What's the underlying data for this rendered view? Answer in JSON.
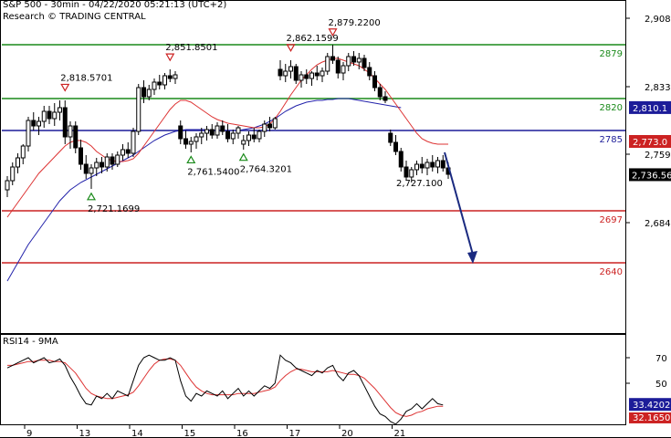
{
  "header": {
    "title": "S&P 500 - 30min - 04/22/2020 05:21:13 (UTC+2)",
    "source": "Research © TRADING CENTRAL"
  },
  "rsi_panel": {
    "label": "RSI14 - 9MA",
    "ticks": [
      "70",
      "50"
    ],
    "last_rsi": "33.4202",
    "last_ma": "32.1650"
  },
  "colors": {
    "green": "#1a8a1a",
    "blue": "#1c1c99",
    "red": "#cc2222",
    "candle_up": "#ffffff",
    "candle_down": "#000000",
    "ma_red": "#dd3333",
    "ma_blue": "#2222aa",
    "arrow": "#1a2a80"
  },
  "chart_data": {
    "type": "candlestick",
    "y_ticks": [
      "2,908",
      "2,833",
      "2,759",
      "2,684"
    ],
    "x_ticks": [
      "9",
      "13",
      "14",
      "15",
      "16",
      "17",
      "20",
      "21"
    ],
    "last_price": "2,736.56",
    "price_tags": [
      {
        "label": "2,810.1",
        "value": 2810.1,
        "color": "blue"
      },
      {
        "label": "2,773.0",
        "value": 2773.0,
        "color": "red"
      }
    ],
    "levels": [
      {
        "label": "2879",
        "value": 2879,
        "color": "green"
      },
      {
        "label": "2820",
        "value": 2820,
        "color": "green"
      },
      {
        "label": "2785",
        "value": 2785,
        "color": "blue"
      },
      {
        "label": "2697",
        "value": 2697,
        "color": "red"
      },
      {
        "label": "2640",
        "value": 2640,
        "color": "red"
      }
    ],
    "annotations": [
      {
        "label": "2,818.5701",
        "kind": "high",
        "value": 2818.57,
        "bar": 11
      },
      {
        "label": "2,721.1699",
        "kind": "low",
        "value": 2721.17,
        "bar": 16
      },
      {
        "label": "2,851.8501",
        "kind": "high",
        "value": 2851.85,
        "bar": 31
      },
      {
        "label": "2,761.5400",
        "kind": "low",
        "value": 2761.54,
        "bar": 35
      },
      {
        "label": "2,764.3201",
        "kind": "low",
        "value": 2764.32,
        "bar": 45
      },
      {
        "label": "2,862.1599",
        "kind": "high",
        "value": 2862.16,
        "bar": 54
      },
      {
        "label": "2,879.2200",
        "kind": "high",
        "value": 2879.22,
        "bar": 62
      },
      {
        "label": "2,727.100",
        "kind": "note",
        "value": 2727.1,
        "bar": 80
      }
    ],
    "forecast": {
      "from": 2758,
      "to": 2640
    },
    "ohlc": [
      [
        2720,
        2735,
        2712,
        2730
      ],
      [
        2730,
        2750,
        2725,
        2745
      ],
      [
        2745,
        2760,
        2738,
        2755
      ],
      [
        2755,
        2770,
        2748,
        2768
      ],
      [
        2768,
        2800,
        2762,
        2796
      ],
      [
        2796,
        2805,
        2785,
        2790
      ],
      [
        2790,
        2800,
        2780,
        2795
      ],
      [
        2795,
        2812,
        2788,
        2806
      ],
      [
        2806,
        2812,
        2792,
        2798
      ],
      [
        2798,
        2815,
        2790,
        2805
      ],
      [
        2805,
        2818,
        2796,
        2810
      ],
      [
        2810,
        2818,
        2770,
        2778
      ],
      [
        2778,
        2795,
        2765,
        2790
      ],
      [
        2790,
        2795,
        2760,
        2766
      ],
      [
        2766,
        2775,
        2742,
        2748
      ],
      [
        2748,
        2758,
        2732,
        2738
      ],
      [
        2738,
        2748,
        2721,
        2744
      ],
      [
        2744,
        2755,
        2735,
        2750
      ],
      [
        2750,
        2756,
        2738,
        2745
      ],
      [
        2745,
        2760,
        2740,
        2756
      ],
      [
        2756,
        2760,
        2742,
        2748
      ],
      [
        2748,
        2762,
        2745,
        2758
      ],
      [
        2758,
        2770,
        2752,
        2764
      ],
      [
        2764,
        2772,
        2755,
        2760
      ],
      [
        2760,
        2788,
        2756,
        2784
      ],
      [
        2784,
        2836,
        2780,
        2832
      ],
      [
        2832,
        2840,
        2815,
        2822
      ],
      [
        2822,
        2835,
        2818,
        2830
      ],
      [
        2830,
        2842,
        2824,
        2838
      ],
      [
        2838,
        2846,
        2830,
        2835
      ],
      [
        2835,
        2848,
        2830,
        2845
      ],
      [
        2845,
        2852,
        2838,
        2842
      ],
      [
        2842,
        2850,
        2836,
        2846
      ],
      [
        2790,
        2796,
        2770,
        2776
      ],
      [
        2776,
        2785,
        2765,
        2770
      ],
      [
        2770,
        2778,
        2761,
        2773
      ],
      [
        2773,
        2782,
        2765,
        2778
      ],
      [
        2778,
        2788,
        2770,
        2782
      ],
      [
        2782,
        2790,
        2774,
        2786
      ],
      [
        2786,
        2792,
        2776,
        2780
      ],
      [
        2780,
        2794,
        2776,
        2790
      ],
      [
        2790,
        2796,
        2780,
        2784
      ],
      [
        2784,
        2792,
        2772,
        2776
      ],
      [
        2776,
        2786,
        2770,
        2782
      ],
      [
        2782,
        2790,
        2776,
        2788
      ],
      [
        2770,
        2780,
        2764,
        2774
      ],
      [
        2774,
        2784,
        2768,
        2780
      ],
      [
        2780,
        2788,
        2772,
        2776
      ],
      [
        2776,
        2786,
        2772,
        2784
      ],
      [
        2784,
        2796,
        2778,
        2792
      ],
      [
        2792,
        2800,
        2784,
        2788
      ],
      [
        2788,
        2800,
        2786,
        2798
      ],
      [
        2852,
        2862,
        2840,
        2845
      ],
      [
        2845,
        2858,
        2838,
        2850
      ],
      [
        2850,
        2862,
        2842,
        2855
      ],
      [
        2855,
        2858,
        2836,
        2840
      ],
      [
        2840,
        2850,
        2832,
        2846
      ],
      [
        2846,
        2852,
        2836,
        2842
      ],
      [
        2842,
        2850,
        2834,
        2848
      ],
      [
        2848,
        2856,
        2840,
        2845
      ],
      [
        2845,
        2854,
        2838,
        2850
      ],
      [
        2850,
        2870,
        2846,
        2866
      ],
      [
        2866,
        2879,
        2858,
        2862
      ],
      [
        2862,
        2866,
        2842,
        2848
      ],
      [
        2848,
        2860,
        2840,
        2856
      ],
      [
        2856,
        2870,
        2850,
        2866
      ],
      [
        2866,
        2872,
        2856,
        2860
      ],
      [
        2860,
        2870,
        2852,
        2864
      ],
      [
        2864,
        2868,
        2850,
        2854
      ],
      [
        2854,
        2860,
        2840,
        2845
      ],
      [
        2845,
        2850,
        2828,
        2832
      ],
      [
        2832,
        2836,
        2818,
        2822
      ],
      [
        2822,
        2828,
        2815,
        2818
      ],
      [
        2782,
        2786,
        2768,
        2772
      ],
      [
        2772,
        2780,
        2758,
        2762
      ],
      [
        2762,
        2766,
        2740,
        2745
      ],
      [
        2745,
        2752,
        2730,
        2734
      ],
      [
        2734,
        2745,
        2728,
        2742
      ],
      [
        2742,
        2752,
        2736,
        2748
      ],
      [
        2748,
        2756,
        2738,
        2744
      ],
      [
        2744,
        2754,
        2736,
        2750
      ],
      [
        2750,
        2758,
        2740,
        2745
      ],
      [
        2745,
        2756,
        2738,
        2752
      ],
      [
        2752,
        2758,
        2740,
        2744
      ],
      [
        2744,
        2750,
        2732,
        2737
      ]
    ],
    "ma_red": [
      2690,
      2698,
      2706,
      2714,
      2722,
      2730,
      2738,
      2744,
      2750,
      2756,
      2762,
      2768,
      2772,
      2774,
      2774,
      2772,
      2768,
      2762,
      2758,
      2754,
      2752,
      2751,
      2751,
      2752,
      2754,
      2760,
      2768,
      2776,
      2784,
      2792,
      2800,
      2808,
      2814,
      2818,
      2818,
      2816,
      2812,
      2808,
      2804,
      2800,
      2797,
      2795,
      2793,
      2792,
      2791,
      2790,
      2789,
      2788,
      2788,
      2789,
      2792,
      2798,
      2806,
      2815,
      2824,
      2832,
      2840,
      2846,
      2852,
      2857,
      2860,
      2862,
      2864,
      2864,
      2862,
      2860,
      2858,
      2856,
      2852,
      2848,
      2842,
      2836,
      2830,
      2822,
      2814,
      2806,
      2798,
      2790,
      2782,
      2776,
      2773,
      2771,
      2770,
      2770,
      2770
    ],
    "ma_blue": [
      2620,
      2630,
      2640,
      2650,
      2660,
      2668,
      2676,
      2684,
      2692,
      2700,
      2708,
      2714,
      2720,
      2724,
      2728,
      2731,
      2734,
      2737,
      2740,
      2743,
      2746,
      2749,
      2752,
      2755,
      2758,
      2762,
      2766,
      2770,
      2774,
      2777,
      2780,
      2782,
      2784,
      2785,
      2786,
      2786,
      2786,
      2786,
      2786,
      2785,
      2785,
      2785,
      2785,
      2785,
      2785,
      2786,
      2787,
      2788,
      2790,
      2792,
      2795,
      2798,
      2802,
      2806,
      2809,
      2812,
      2814,
      2816,
      2817,
      2818,
      2818,
      2819,
      2819,
      2820,
      2820,
      2820,
      2819,
      2818,
      2817,
      2816,
      2815,
      2814,
      2813,
      2812,
      2811,
      2810
    ],
    "rsi": [
      62,
      64,
      66,
      68,
      70,
      66,
      68,
      70,
      66,
      67,
      69,
      64,
      55,
      48,
      40,
      34,
      33,
      40,
      38,
      42,
      38,
      44,
      42,
      40,
      52,
      64,
      70,
      72,
      70,
      68,
      68,
      70,
      68,
      52,
      40,
      36,
      42,
      40,
      44,
      42,
      40,
      44,
      38,
      42,
      46,
      40,
      44,
      40,
      44,
      48,
      46,
      50,
      72,
      68,
      66,
      62,
      60,
      58,
      56,
      60,
      58,
      62,
      64,
      56,
      52,
      58,
      60,
      56,
      48,
      40,
      32,
      26,
      24,
      20,
      18,
      22,
      28,
      30,
      34,
      30,
      34,
      38,
      34,
      33
    ],
    "rsi_ma": [
      64,
      64,
      65,
      66,
      67,
      67,
      68,
      68,
      68,
      67,
      67,
      66,
      62,
      58,
      52,
      46,
      42,
      40,
      39,
      38,
      38,
      39,
      40,
      41,
      43,
      48,
      54,
      60,
      65,
      68,
      69,
      69,
      68,
      64,
      58,
      52,
      47,
      44,
      42,
      41,
      41,
      41,
      41,
      41,
      42,
      42,
      42,
      42,
      43,
      44,
      45,
      47,
      52,
      56,
      59,
      61,
      61,
      60,
      59,
      59,
      59,
      59,
      60,
      59,
      58,
      57,
      57,
      56,
      54,
      50,
      46,
      41,
      36,
      31,
      27,
      25,
      24,
      25,
      27,
      28,
      30,
      31,
      32,
      32
    ]
  }
}
